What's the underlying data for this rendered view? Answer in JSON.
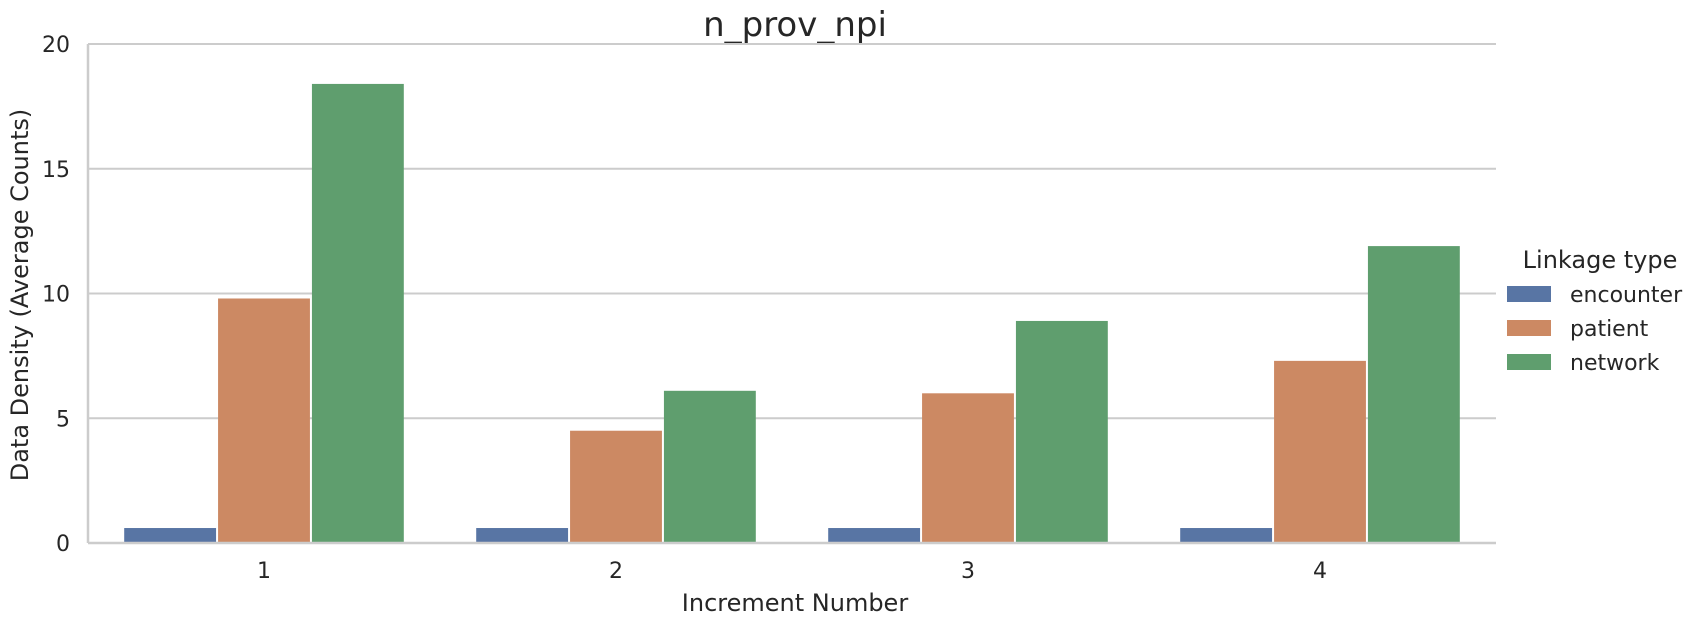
{
  "chart_data": {
    "type": "bar",
    "title": "n_prov_npi",
    "xlabel": "Increment Number",
    "ylabel": "Data Density (Average Counts)",
    "categories": [
      "1",
      "2",
      "3",
      "4"
    ],
    "ylim": [
      0,
      20
    ],
    "yticks": [
      "0",
      "5",
      "10",
      "15",
      "20"
    ],
    "grid": "horizontal",
    "legend": {
      "title": "Linkage type",
      "placement": "right"
    },
    "series": [
      {
        "name": "encounter",
        "color": "#5875a4",
        "values": [
          0.6,
          0.6,
          0.6,
          0.6
        ]
      },
      {
        "name": "patient",
        "color": "#cc8963",
        "values": [
          9.8,
          4.5,
          6.0,
          7.3
        ]
      },
      {
        "name": "network",
        "color": "#5f9e6e",
        "values": [
          18.4,
          6.1,
          8.9,
          11.9
        ]
      }
    ]
  }
}
